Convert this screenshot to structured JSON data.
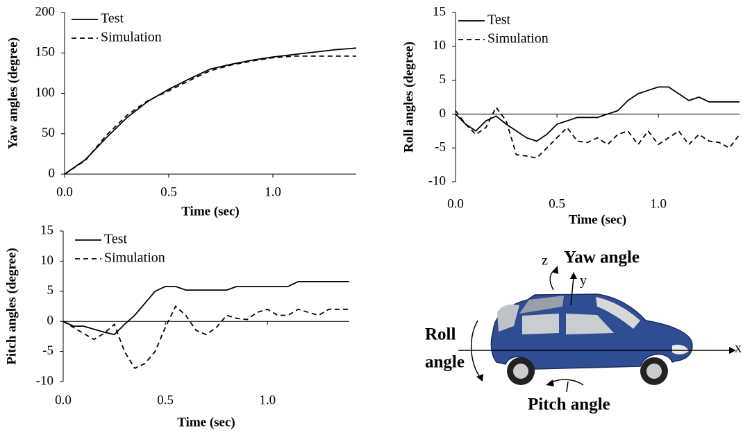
{
  "chart_data": [
    {
      "type": "line",
      "xlabel": "Time (sec)",
      "ylabel": "Yaw angles (degree)",
      "x": [
        0,
        0.1,
        0.2,
        0.3,
        0.4,
        0.5,
        0.6,
        0.7,
        0.8,
        0.9,
        1.0,
        1.1,
        1.2,
        1.3,
        1.4
      ],
      "series": [
        {
          "name": "Test",
          "color": "#000000",
          "line_style": "solid",
          "values": [
            0,
            18,
            45,
            70,
            90,
            105,
            118,
            130,
            136,
            141,
            145,
            148,
            151,
            154,
            156
          ]
        },
        {
          "name": "Simulation",
          "color": "#000000",
          "line_style": "dashed",
          "values": [
            0,
            17,
            48,
            73,
            91,
            103,
            116,
            128,
            135,
            140,
            144,
            146,
            146,
            146,
            146
          ]
        }
      ],
      "xlim": [
        0,
        1.4
      ],
      "ylim": [
        0,
        200
      ],
      "xticks": [
        {
          "value": 0,
          "label": "0.0"
        },
        {
          "value": 0.5,
          "label": "0.5"
        },
        {
          "value": 1.0,
          "label": "1.0"
        }
      ],
      "yticks": [
        0,
        50,
        100,
        150,
        200
      ],
      "legend": "upper left",
      "grid": false
    },
    {
      "type": "line",
      "xlabel": "Time (sec)",
      "ylabel": "Roll angles (degree)",
      "x": [
        0,
        0.05,
        0.1,
        0.15,
        0.2,
        0.25,
        0.3,
        0.35,
        0.4,
        0.45,
        0.5,
        0.55,
        0.6,
        0.65,
        0.7,
        0.75,
        0.8,
        0.85,
        0.9,
        0.95,
        1.0,
        1.05,
        1.1,
        1.15,
        1.2,
        1.25,
        1.3,
        1.35,
        1.4
      ],
      "series": [
        {
          "name": "Test",
          "color": "#000000",
          "line_style": "solid",
          "values": [
            0,
            -1.5,
            -2.5,
            -1,
            -0.3,
            -1.5,
            -2.5,
            -3.5,
            -4,
            -3,
            -1.5,
            -1,
            -0.5,
            -0.5,
            -0.5,
            0,
            0.5,
            2,
            3,
            3.5,
            4,
            4,
            3,
            2,
            2.5,
            1.8,
            1.8,
            1.8,
            1.8
          ]
        },
        {
          "name": "Simulation",
          "color": "#000000",
          "line_style": "dashed",
          "values": [
            0.5,
            -1.5,
            -3,
            -2,
            1,
            -1,
            -6,
            -6.2,
            -6.5,
            -5,
            -3.5,
            -2,
            -4,
            -4.2,
            -3.5,
            -4.5,
            -3,
            -2.5,
            -4.5,
            -2.5,
            -4.5,
            -3.5,
            -2.5,
            -4.5,
            -3,
            -4,
            -4.2,
            -5,
            -3
          ]
        }
      ],
      "xlim": [
        0,
        1.4
      ],
      "ylim": [
        -10,
        15
      ],
      "xticks": [
        {
          "value": 0,
          "label": "0.0"
        },
        {
          "value": 0.5,
          "label": "0.5"
        },
        {
          "value": 1.0,
          "label": "1.0"
        }
      ],
      "yticks": [
        -10,
        -5,
        0,
        5,
        10,
        15
      ],
      "legend": "upper left",
      "grid": false
    },
    {
      "type": "line",
      "xlabel": "Time (sec)",
      "ylabel": "Pitch angles (degree)",
      "x": [
        0,
        0.05,
        0.1,
        0.15,
        0.2,
        0.25,
        0.3,
        0.35,
        0.4,
        0.45,
        0.5,
        0.55,
        0.6,
        0.65,
        0.7,
        0.75,
        0.8,
        0.85,
        0.9,
        0.95,
        1.0,
        1.05,
        1.1,
        1.15,
        1.2,
        1.25,
        1.3,
        1.35,
        1.4
      ],
      "series": [
        {
          "name": "Test",
          "color": "#000000",
          "line_style": "solid",
          "values": [
            0,
            -0.8,
            -0.8,
            -1.3,
            -1.8,
            -2.2,
            -0.5,
            1,
            3,
            5,
            5.8,
            5.8,
            5.2,
            5.2,
            5.2,
            5.2,
            5.2,
            5.8,
            5.8,
            5.8,
            5.8,
            5.8,
            5.8,
            6.6,
            6.6,
            6.6,
            6.6,
            6.6,
            6.6
          ]
        },
        {
          "name": "Simulation",
          "color": "#000000",
          "line_style": "dashed",
          "values": [
            0,
            -1,
            -2,
            -3,
            -2,
            -0.5,
            -5,
            -7.8,
            -7,
            -5,
            -1,
            2.5,
            1,
            -1.5,
            -2.2,
            -1,
            1,
            0.5,
            0.3,
            1.5,
            2,
            1,
            1,
            2,
            1.5,
            1,
            2,
            2,
            2
          ]
        }
      ],
      "xlim": [
        0,
        1.4
      ],
      "ylim": [
        -10,
        15
      ],
      "xticks": [
        {
          "value": 0,
          "label": "0.0"
        },
        {
          "value": 0.5,
          "label": "0.5"
        },
        {
          "value": 1.0,
          "label": "1.0"
        }
      ],
      "yticks": [
        -10,
        -5,
        0,
        5,
        10,
        15
      ],
      "legend": "upper left",
      "grid": false
    }
  ],
  "diagram": {
    "yaw_angle": "Yaw angle",
    "z": "z",
    "y": "y",
    "x": "x",
    "roll_angle": [
      "Roll",
      "angle"
    ],
    "pitch_angle": "Pitch angle"
  }
}
